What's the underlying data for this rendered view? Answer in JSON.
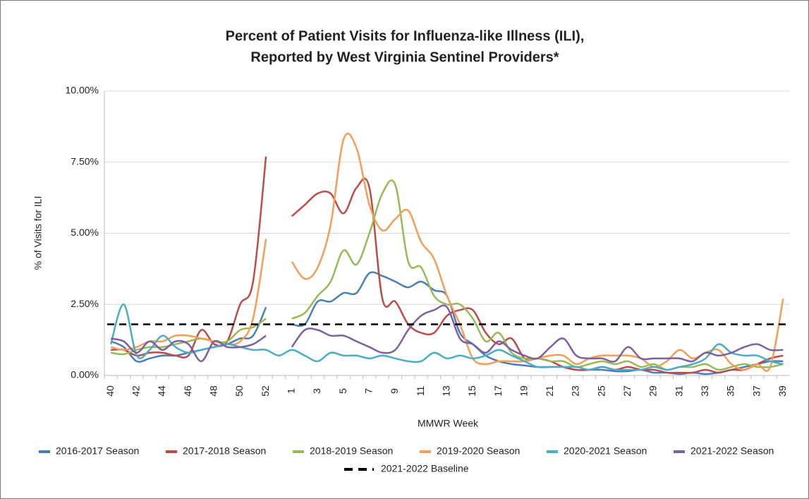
{
  "chart_data": {
    "type": "line",
    "title": [
      "Percent of Patient Visits for Influenza-like Illness (ILI),",
      "Reported by West Virginia Sentinel Providers*"
    ],
    "x_label": "MMWR Week",
    "y_label": "% of Visits for ILI",
    "categories": [
      "40",
      null,
      "42",
      null,
      "44",
      null,
      "46",
      null,
      "48",
      null,
      "50",
      null,
      "52",
      null,
      "1",
      null,
      "3",
      null,
      "5",
      null,
      "7",
      null,
      "9",
      null,
      "11",
      null,
      "13",
      null,
      "15",
      null,
      "17",
      null,
      "19",
      null,
      "21",
      null,
      "23",
      null,
      "25",
      null,
      "27",
      null,
      "29",
      null,
      "31",
      null,
      "33",
      null,
      "35",
      null,
      "37",
      null,
      "39"
    ],
    "ylim": [
      0,
      10
    ],
    "yticks": [
      {
        "value": 0,
        "label": "0.00%"
      },
      {
        "value": 2.5,
        "label": "2.50%"
      },
      {
        "value": 5,
        "label": "5.00%"
      },
      {
        "value": 7.5,
        "label": "7.50%"
      },
      {
        "value": 10,
        "label": "10.00%"
      }
    ],
    "grid": true,
    "series": [
      {
        "name": "2016-2017 Season",
        "color": "#4a7ebb",
        "values": [
          1.2,
          1.0,
          0.5,
          0.6,
          0.7,
          0.7,
          0.8,
          0.9,
          1.0,
          1.1,
          1.3,
          1.4,
          2.4,
          null,
          1.8,
          1.8,
          2.6,
          2.6,
          2.9,
          2.9,
          3.6,
          3.5,
          3.3,
          3.1,
          3.3,
          3.0,
          2.8,
          1.5,
          1.1,
          0.7,
          0.5,
          0.4,
          0.35,
          0.3,
          0.3,
          0.3,
          0.2,
          0.2,
          0.2,
          0.15,
          0.15,
          0.2,
          0.1,
          0.1,
          0.05,
          0.1,
          0.05,
          0.1,
          0.2,
          0.3,
          0.4,
          0.5,
          0.5
        ]
      },
      {
        "name": "2017-2018 Season",
        "color": "#be4b48",
        "values": [
          0.9,
          0.9,
          0.7,
          0.8,
          0.8,
          0.7,
          0.7,
          1.6,
          1.1,
          1.2,
          2.5,
          3.3,
          7.7,
          null,
          5.6,
          6.0,
          6.4,
          6.4,
          5.7,
          6.6,
          6.6,
          2.7,
          2.6,
          1.8,
          1.5,
          1.5,
          2.1,
          2.3,
          2.3,
          1.5,
          1.1,
          1.3,
          0.6,
          0.6,
          0.5,
          0.3,
          0.2,
          0.2,
          0.3,
          0.2,
          0.3,
          0.2,
          0.2,
          0.1,
          0.1,
          0.1,
          0.2,
          0.1,
          0.2,
          0.2,
          0.4,
          0.6,
          0.7
        ]
      },
      {
        "name": "2018-2019 Season",
        "color": "#98b954",
        "values": [
          0.8,
          0.75,
          0.9,
          1.0,
          1.0,
          1.1,
          1.2,
          1.3,
          1.2,
          1.2,
          1.6,
          1.7,
          2.0,
          null,
          2.0,
          2.2,
          2.8,
          3.3,
          4.4,
          3.9,
          5.0,
          6.4,
          6.7,
          4.0,
          3.8,
          2.8,
          2.5,
          2.5,
          2.0,
          1.2,
          1.5,
          0.8,
          0.6,
          0.6,
          0.5,
          0.5,
          0.3,
          0.4,
          0.5,
          0.4,
          0.5,
          0.3,
          0.4,
          0.2,
          0.3,
          0.3,
          0.4,
          0.2,
          0.3,
          0.4,
          0.3,
          0.3,
          0.4
        ]
      },
      {
        "name": "2019-2020 Season",
        "color": "#f59d56",
        "values": [
          1.0,
          0.9,
          1.0,
          1.2,
          1.2,
          1.4,
          1.4,
          1.3,
          1.2,
          1.1,
          1.2,
          2.0,
          4.8,
          null,
          4.0,
          3.4,
          3.8,
          5.3,
          8.3,
          8.0,
          6.0,
          5.1,
          5.5,
          5.8,
          4.7,
          4.1,
          2.8,
          1.8,
          0.6,
          0.4,
          0.5,
          0.5,
          0.5,
          0.6,
          0.7,
          0.7,
          0.4,
          0.6,
          0.7,
          0.7,
          0.7,
          0.6,
          0.3,
          0.5,
          0.9,
          0.6,
          0.8,
          0.9,
          0.4,
          0.2,
          0.4,
          0.3,
          2.7
        ]
      },
      {
        "name": "2020-2021 Season",
        "color": "#4bacc6",
        "values": [
          1.1,
          2.5,
          0.7,
          0.9,
          1.4,
          1.0,
          0.8,
          0.9,
          1.0,
          1.1,
          1.0,
          0.9,
          0.9,
          0.7,
          0.9,
          0.7,
          0.5,
          0.8,
          0.7,
          0.7,
          0.6,
          0.7,
          0.6,
          0.5,
          0.5,
          0.8,
          0.6,
          0.7,
          0.6,
          0.7,
          0.9,
          0.7,
          0.5,
          0.3,
          0.3,
          0.3,
          0.3,
          0.2,
          0.3,
          0.2,
          0.2,
          0.2,
          0.3,
          0.2,
          0.3,
          0.4,
          0.6,
          1.1,
          0.8,
          0.7,
          0.7,
          0.5,
          0.4
        ]
      },
      {
        "name": "2021-2022 Season",
        "color": "#7d60a0",
        "values": [
          1.3,
          1.2,
          0.8,
          1.2,
          0.9,
          1.2,
          1.1,
          0.5,
          1.2,
          1.0,
          1.0,
          1.1,
          1.4,
          null,
          1.0,
          1.6,
          1.6,
          1.4,
          1.4,
          1.2,
          1.0,
          0.8,
          0.9,
          1.6,
          2.1,
          2.3,
          2.4,
          1.3,
          1.1,
          0.8,
          1.2,
          0.9,
          0.7,
          0.6,
          1.0,
          1.3,
          0.7,
          0.6,
          0.6,
          0.5,
          1.0,
          0.6,
          0.6,
          0.6,
          0.6,
          0.5,
          0.8,
          0.7,
          0.8,
          1.0,
          1.1,
          0.9,
          0.9
        ]
      }
    ],
    "baseline": {
      "name": "2021-2022 Baseline",
      "value": 1.8,
      "color": "#000000"
    }
  }
}
